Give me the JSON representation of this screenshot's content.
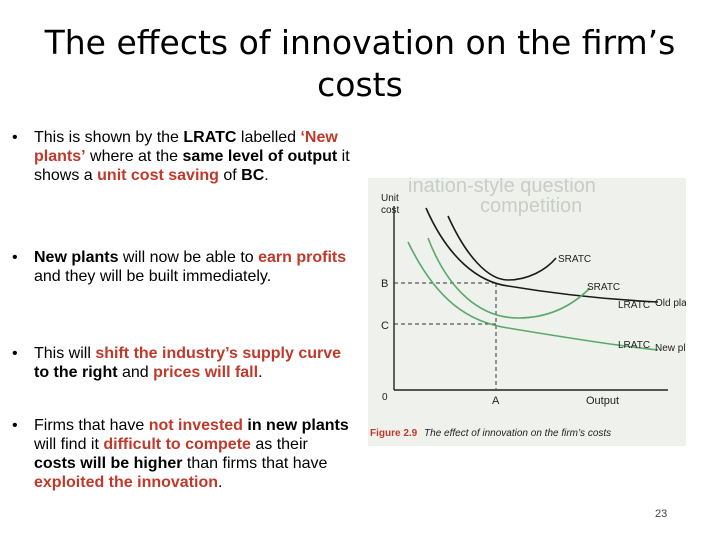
{
  "slide": {
    "title": "The effects of innovation on the firm’s costs",
    "page_number": "23"
  },
  "bullets": [
    {
      "id": "b1",
      "segments": [
        {
          "t": "This is shown by the ",
          "s": "n"
        },
        {
          "t": "LRATC",
          "s": "b"
        },
        {
          "t": " labelled ",
          "s": "n"
        },
        {
          "t": "‘New plants’",
          "s": "hb"
        },
        {
          "t": " where at the ",
          "s": "n"
        },
        {
          "t": "same level of output",
          "s": "b"
        },
        {
          "t": " it shows a ",
          "s": "n"
        },
        {
          "t": "unit cost saving",
          "s": "h"
        },
        {
          "t": " of ",
          "s": "n"
        },
        {
          "t": "BC",
          "s": "b"
        },
        {
          "t": ".",
          "s": "n"
        }
      ]
    },
    {
      "id": "b2",
      "segments": [
        {
          "t": "New plants",
          "s": "b"
        },
        {
          "t": " will now be able to ",
          "s": "n"
        },
        {
          "t": "earn profits",
          "s": "h"
        },
        {
          "t": " and they will be built immediately.",
          "s": "n"
        }
      ]
    },
    {
      "id": "b3",
      "segments": [
        {
          "t": "This will ",
          "s": "n"
        },
        {
          "t": "shift the industry’s supply curve",
          "s": "h"
        },
        {
          "t": " to the right",
          "s": "b"
        },
        {
          "t": " and ",
          "s": "n"
        },
        {
          "t": "prices will fall",
          "s": "h"
        },
        {
          "t": ".",
          "s": "n"
        }
      ]
    },
    {
      "id": "b4",
      "segments": [
        {
          "t": "Firms that have ",
          "s": "n"
        },
        {
          "t": "not invested",
          "s": "h"
        },
        {
          "t": " in new plants",
          "s": "b"
        },
        {
          "t": " will find it ",
          "s": "n"
        },
        {
          "t": "difficult to compete",
          "s": "h"
        },
        {
          "t": " as their ",
          "s": "n"
        },
        {
          "t": "costs will be higher",
          "s": "b"
        },
        {
          "t": " than firms that have ",
          "s": "n"
        },
        {
          "t": "exploited the innovation",
          "s": "h"
        },
        {
          "t": ".",
          "s": "n"
        }
      ]
    }
  ],
  "figure": {
    "y_axis_label_line1": "Unit",
    "y_axis_label_line2": "cost",
    "x_axis_label": "Output",
    "origin_label": "0",
    "label_A": "A",
    "label_B": "B",
    "label_C": "C",
    "curve_labels": {
      "sratc_old": "SRATC",
      "sratc_new": "SRATC",
      "lratc_old": "LRATC",
      "lratc_old_name": "Old plants",
      "lratc_new": "LRATC",
      "lratc_new_name": "New plants"
    },
    "caption_number": "Figure 2.9",
    "caption_text": "The effect of innovation on the firm’s costs",
    "background_watermark_line1": "ination-style question",
    "background_watermark_line2": "competition"
  },
  "colors": {
    "highlight": "#c0392b",
    "old_curve": "#1a1a1a",
    "new_curve": "#5aa86a",
    "caption_accent": "#c0392b"
  }
}
